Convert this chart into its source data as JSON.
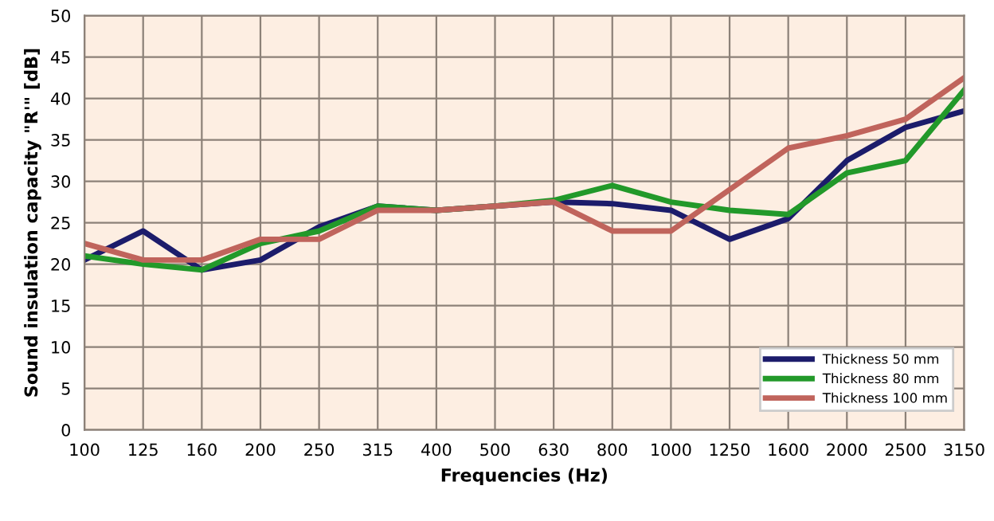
{
  "chart_data": {
    "type": "line",
    "xlabel": "Frequencies (Hz)",
    "ylabel": "Sound insulation capacity \"R'\" [dB]",
    "categories": [
      "100",
      "125",
      "160",
      "200",
      "250",
      "315",
      "400",
      "500",
      "630",
      "800",
      "1000",
      "1250",
      "1600",
      "2000",
      "2500",
      "3150"
    ],
    "series": [
      {
        "name": "Thickness 50 mm",
        "color": "#1c1c6b",
        "values": [
          20.5,
          24,
          19.3,
          20.5,
          24.5,
          27,
          26.5,
          27,
          27.5,
          27.3,
          26.5,
          23,
          25.5,
          32.5,
          36.5,
          38.5
        ]
      },
      {
        "name": "Thickness 80 mm",
        "color": "#22992a",
        "values": [
          21,
          20,
          19.3,
          22.5,
          24,
          27,
          26.5,
          27,
          27.7,
          29.5,
          27.5,
          26.5,
          26,
          31,
          32.5,
          41
        ]
      },
      {
        "name": "Thickness 100 mm",
        "color": "#c0645c",
        "values": [
          22.5,
          20.5,
          20.5,
          23,
          23,
          26.5,
          26.5,
          27,
          27.5,
          24,
          24,
          29,
          34,
          35.5,
          37.5,
          42.5
        ]
      }
    ],
    "ylim": [
      0,
      50
    ],
    "yticks": [
      0,
      5,
      10,
      15,
      20,
      25,
      30,
      35,
      40,
      45,
      50
    ],
    "grid": true,
    "legend": "bottom right",
    "marker": "none",
    "line_style": "solid"
  }
}
